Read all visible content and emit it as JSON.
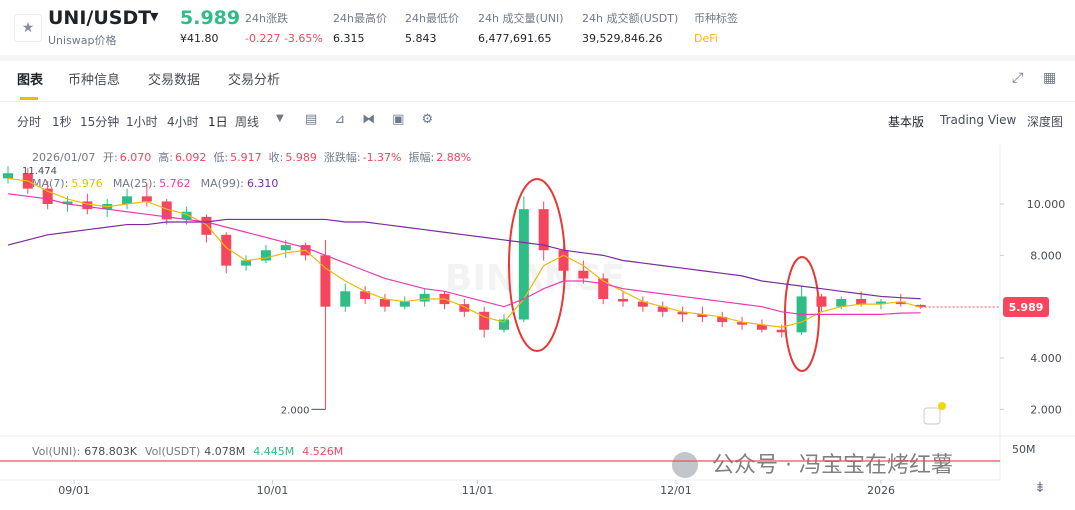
{
  "header": {
    "symbol": "UNI/USDT",
    "price": "5.989",
    "name": "Uniswap价格",
    "fiat_price": "¥41.80",
    "stats": [
      {
        "label": "24h涨跌",
        "value": "-0.227 -3.65%"
      },
      {
        "label": "24h最高价",
        "value": "6.315"
      },
      {
        "label": "24h最低价",
        "value": "5.843"
      },
      {
        "label": "24h 成交量(UNI)",
        "value": "6,477,691.65"
      },
      {
        "label": "24h 成交额(USDT)",
        "value": "39,529,846.26"
      },
      {
        "label": "币种标签",
        "value": "DeFi"
      }
    ]
  },
  "tabs": [
    "图表",
    "币种信息",
    "交易数据",
    "交易分析"
  ],
  "toolbar": {
    "intervals": [
      "分时",
      "1秒",
      "15分钟",
      "1小时",
      "4小时",
      "1日",
      "周线"
    ],
    "views": [
      "基本版",
      "Trading View",
      "深度图"
    ]
  },
  "chart_info": {
    "date": "2026/01/07",
    "fields": [
      {
        "label": "开:",
        "value": "6.070"
      },
      {
        "label": "高:",
        "value": "6.092"
      },
      {
        "label": "低:",
        "value": "5.917"
      },
      {
        "label": "收:",
        "value": "5.989"
      },
      {
        "label": "涨跌幅:",
        "value": "-1.37%"
      },
      {
        "label": "振幅:",
        "value": "2.88%"
      }
    ]
  },
  "volume_legend": [
    {
      "label": "Vol(UNI):",
      "value": "678.803K"
    },
    {
      "label": "Vol(USDT)",
      "value": "4.078M"
    },
    {
      "label": "",
      "value": "4.445M"
    },
    {
      "label": "",
      "value": "4.526M"
    }
  ],
  "volume_axis_label": "50M",
  "watermark": "公众号 · 冯宝宝在烤红薯",
  "chart_data": {
    "type": "candlestick",
    "x": [
      0,
      3,
      6,
      9,
      12,
      15,
      18,
      21,
      24,
      27,
      30,
      33,
      36,
      39,
      42,
      45,
      48,
      51,
      54,
      57,
      60,
      63,
      66,
      69,
      72,
      75,
      78,
      81,
      84,
      87,
      90,
      93,
      96,
      99,
      102,
      105,
      108,
      111,
      114,
      117,
      120,
      123,
      126,
      129,
      132,
      135,
      138
    ],
    "open": [
      11.0,
      11.2,
      10.6,
      10.0,
      10.1,
      9.8,
      10.0,
      10.3,
      10.1,
      9.4,
      9.5,
      8.8,
      7.6,
      7.8,
      8.2,
      8.4,
      8.0,
      6.0,
      6.6,
      6.3,
      6.0,
      6.2,
      6.5,
      6.1,
      5.8,
      5.1,
      5.5,
      9.8,
      8.2,
      7.4,
      7.1,
      6.3,
      6.2,
      6.0,
      5.8,
      5.7,
      5.6,
      5.4,
      5.3,
      5.1,
      5.0,
      6.4,
      6.0,
      6.3,
      6.1,
      6.2,
      6.07
    ],
    "high": [
      11.474,
      11.4,
      10.9,
      10.3,
      10.4,
      10.2,
      10.6,
      10.8,
      10.2,
      9.9,
      9.6,
      8.9,
      8.0,
      8.4,
      8.6,
      8.5,
      8.6,
      6.9,
      6.8,
      6.5,
      6.4,
      6.7,
      6.6,
      6.3,
      6.0,
      5.7,
      10.3,
      10.1,
      8.4,
      7.8,
      7.3,
      6.6,
      6.4,
      6.2,
      6.0,
      6.0,
      5.8,
      5.6,
      5.5,
      5.3,
      6.8,
      6.5,
      6.4,
      6.6,
      6.3,
      6.5,
      6.092
    ],
    "low": [
      10.8,
      10.4,
      9.8,
      9.7,
      9.6,
      9.5,
      9.8,
      9.9,
      9.2,
      9.2,
      8.5,
      7.3,
      7.4,
      7.7,
      7.9,
      7.8,
      2.0,
      5.8,
      6.1,
      5.8,
      5.9,
      6.0,
      5.9,
      5.6,
      4.8,
      5.0,
      5.4,
      7.8,
      7.0,
      6.9,
      6.1,
      6.0,
      5.8,
      5.6,
      5.4,
      5.4,
      5.2,
      5.1,
      5.0,
      4.8,
      4.9,
      5.8,
      5.9,
      6.0,
      5.9,
      6.0,
      5.917
    ],
    "close": [
      11.2,
      10.6,
      10.0,
      10.1,
      9.8,
      10.0,
      10.3,
      10.1,
      9.4,
      9.7,
      8.8,
      7.6,
      7.8,
      8.2,
      8.4,
      8.0,
      6.0,
      6.6,
      6.3,
      6.0,
      6.2,
      6.5,
      6.1,
      5.8,
      5.1,
      5.5,
      9.8,
      8.2,
      7.4,
      7.1,
      6.3,
      6.2,
      6.0,
      5.8,
      5.7,
      5.6,
      5.4,
      5.3,
      5.1,
      5.0,
      6.4,
      6.0,
      6.3,
      6.1,
      6.2,
      6.1,
      5.989
    ],
    "series": [
      {
        "name": "MA(7):",
        "label_value": "5.976",
        "color": "#f0b90b",
        "values": [
          11.0,
          10.9,
          10.5,
          10.2,
          10.0,
          9.9,
          10.0,
          10.1,
          9.8,
          9.6,
          9.2,
          8.3,
          7.8,
          7.9,
          8.1,
          8.2,
          7.5,
          7.0,
          6.6,
          6.3,
          6.2,
          6.3,
          6.3,
          6.0,
          5.6,
          5.4,
          6.3,
          7.6,
          8.0,
          7.6,
          7.0,
          6.6,
          6.2,
          6.0,
          5.8,
          5.7,
          5.6,
          5.4,
          5.3,
          5.2,
          5.4,
          5.8,
          6.0,
          6.1,
          6.1,
          6.2,
          5.976
        ]
      },
      {
        "name": "MA(25):",
        "label_value": "5.762",
        "color": "#e93cb0",
        "values": [
          10.4,
          10.3,
          10.2,
          10.0,
          9.9,
          9.8,
          9.7,
          9.6,
          9.5,
          9.4,
          9.3,
          9.1,
          8.9,
          8.7,
          8.5,
          8.3,
          8.0,
          7.7,
          7.4,
          7.1,
          6.9,
          6.7,
          6.6,
          6.4,
          6.2,
          6.0,
          6.3,
          6.7,
          7.0,
          7.0,
          6.9,
          6.7,
          6.6,
          6.5,
          6.4,
          6.3,
          6.2,
          6.1,
          6.0,
          5.8,
          5.7,
          5.7,
          5.7,
          5.7,
          5.7,
          5.75,
          5.762
        ]
      },
      {
        "name": "MA(99):",
        "label_value": "6.310",
        "color": "#7b2b9e",
        "values": [
          8.4,
          8.6,
          8.8,
          8.9,
          9.0,
          9.1,
          9.2,
          9.2,
          9.3,
          9.3,
          9.3,
          9.4,
          9.4,
          9.4,
          9.4,
          9.4,
          9.4,
          9.3,
          9.3,
          9.2,
          9.1,
          9.0,
          8.9,
          8.8,
          8.7,
          8.6,
          8.5,
          8.4,
          8.2,
          8.1,
          8.0,
          7.8,
          7.7,
          7.6,
          7.5,
          7.4,
          7.3,
          7.2,
          7.0,
          6.9,
          6.8,
          6.7,
          6.6,
          6.5,
          6.4,
          6.35,
          6.31
        ]
      }
    ],
    "up_color": "#2ebd85",
    "down_color": "#f6465d",
    "xlim": [
      0,
      150
    ],
    "xticks": [
      {
        "value": 10,
        "label": "09/01"
      },
      {
        "value": 40,
        "label": "10/01"
      },
      {
        "value": 71,
        "label": "11/01"
      },
      {
        "value": 101,
        "label": "12/01"
      },
      {
        "value": 132,
        "label": "2026"
      }
    ],
    "ylim": [
      1,
      12.3
    ],
    "yticks": [
      {
        "value": 2,
        "label": "2.000"
      },
      {
        "value": 4,
        "label": "4.000"
      },
      {
        "value": 8,
        "label": "8.000"
      },
      {
        "value": 10,
        "label": "10.000"
      }
    ],
    "max_label": "11.474",
    "min_label": "2.000",
    "last_price_label": "5.989"
  }
}
